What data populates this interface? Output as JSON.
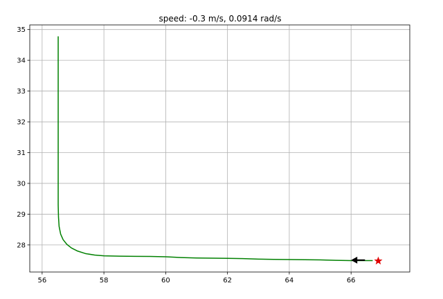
{
  "chart_data": {
    "type": "line",
    "title": "speed: -0.3 m/s, 0.0914 rad/s",
    "xlabel": "",
    "ylabel": "",
    "xlim": [
      55.6,
      67.9
    ],
    "ylim": [
      27.12,
      35.15
    ],
    "x_ticks": [
      56,
      58,
      60,
      62,
      64,
      66
    ],
    "y_ticks": [
      28,
      29,
      30,
      31,
      32,
      33,
      34,
      35
    ],
    "x_tick_labels": [
      "56",
      "58",
      "60",
      "62",
      "64",
      "66"
    ],
    "y_tick_labels": [
      "28",
      "29",
      "30",
      "31",
      "32",
      "33",
      "34",
      "35"
    ],
    "grid": true,
    "series": [
      {
        "color": "#008000",
        "x": [
          56.52,
          56.52,
          56.52,
          56.52,
          56.52,
          56.53,
          56.55,
          56.6,
          56.68,
          56.8,
          56.95,
          57.15,
          57.4,
          57.7,
          58.0,
          58.5,
          59.0,
          59.5,
          60.0,
          60.5,
          61.0,
          61.5,
          62.0,
          62.5,
          63.0,
          63.5,
          64.0,
          64.5,
          65.0,
          65.5,
          66.0,
          66.3,
          66.5,
          66.7
        ],
        "y": [
          34.78,
          33.5,
          32.0,
          30.5,
          29.3,
          28.9,
          28.6,
          28.35,
          28.17,
          28.02,
          27.9,
          27.8,
          27.72,
          27.67,
          27.645,
          27.635,
          27.63,
          27.625,
          27.615,
          27.59,
          27.575,
          27.57,
          27.565,
          27.555,
          27.54,
          27.53,
          27.525,
          27.52,
          27.515,
          27.5,
          27.49,
          27.49,
          27.49,
          27.49
        ]
      }
    ],
    "robot_arrow": {
      "x": 66.45,
      "y": 27.505,
      "dx": -0.45,
      "dy": 0.0,
      "color": "#000000"
    },
    "goal_marker": {
      "x": 66.88,
      "y": 27.48,
      "shape": "star",
      "color": "#e00000"
    }
  }
}
